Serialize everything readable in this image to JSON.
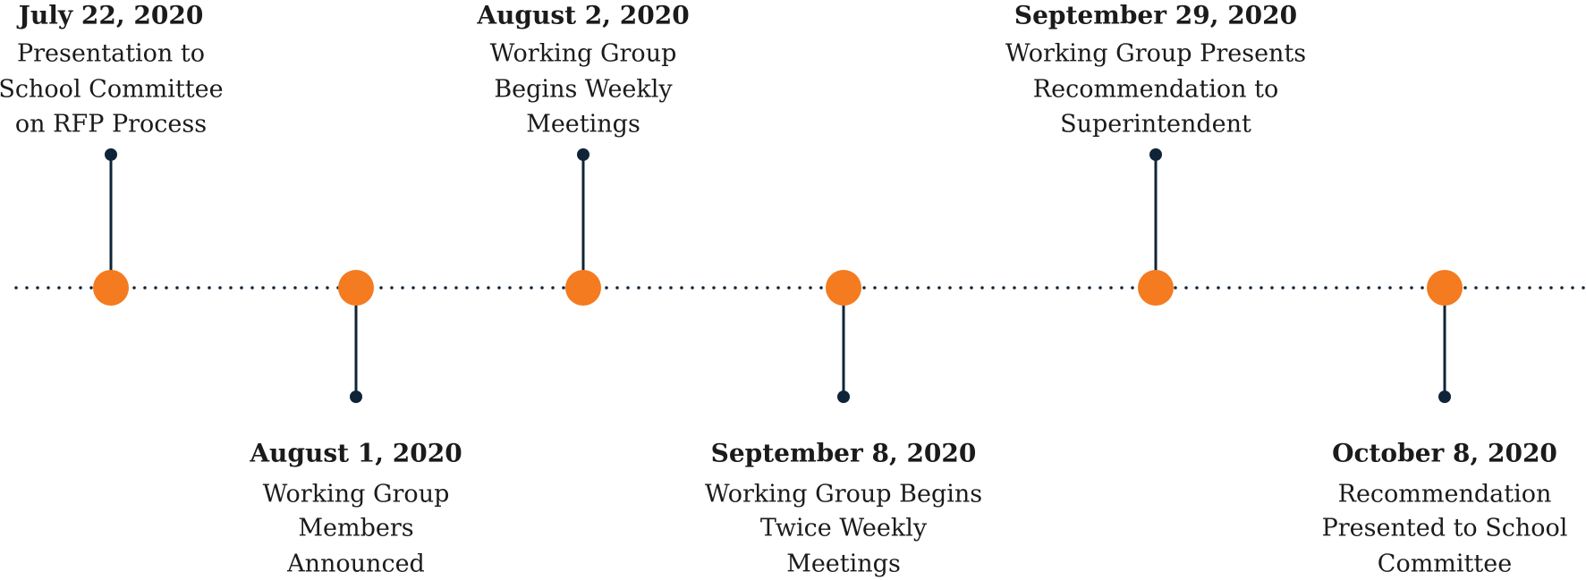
{
  "events": [
    {
      "date": "July 22, 2020",
      "lines": [
        "Presentation to",
        "School Committee",
        "on RFP Process"
      ]
    },
    {
      "date": "August 1, 2020",
      "lines": [
        "Working Group",
        "Members",
        "Announced"
      ]
    },
    {
      "date": "August 2, 2020",
      "lines": [
        "Working Group",
        "Begins Weekly",
        "Meetings"
      ]
    },
    {
      "date": "September 8, 2020",
      "lines": [
        "Working Group Begins",
        "Twice Weekly",
        "Meetings"
      ]
    },
    {
      "date": "September 29, 2020",
      "lines": [
        "Working Group Presents",
        "Recommendation to",
        "Superintendent"
      ]
    },
    {
      "date": "October 8, 2020",
      "lines": [
        "Recommendation",
        "Presented to School",
        "Committee"
      ]
    }
  ]
}
